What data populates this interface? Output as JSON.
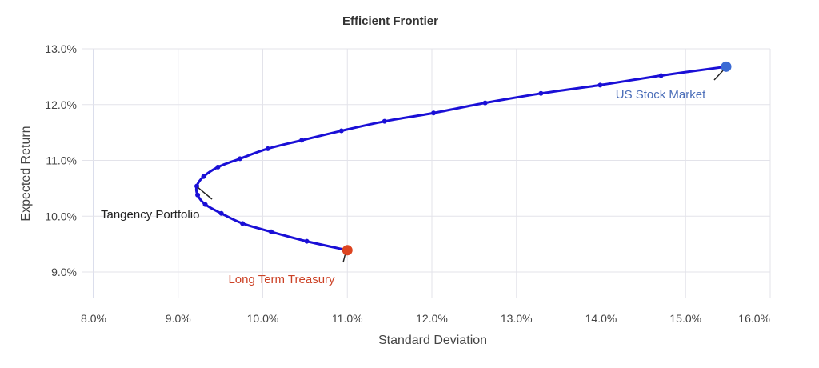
{
  "chart_data": {
    "type": "line",
    "title": "Efficient Frontier",
    "xlabel": "Standard Deviation",
    "ylabel": "Expected Return",
    "xlim": [
      8.0,
      16.0
    ],
    "ylim": [
      8.53,
      13.0
    ],
    "x_ticks": [
      "8.0%",
      "9.0%",
      "10.0%",
      "11.0%",
      "12.0%",
      "13.0%",
      "14.0%",
      "15.0%",
      "16.0%"
    ],
    "y_ticks": [
      "9.0%",
      "10.0%",
      "11.0%",
      "12.0%",
      "13.0%"
    ],
    "grid": true,
    "legend": null,
    "series": [
      {
        "name": "Efficient Frontier",
        "color": "#1a0fd6",
        "x": [
          11.0,
          10.52,
          10.1,
          9.76,
          9.51,
          9.32,
          9.23,
          9.22,
          9.3,
          9.47,
          9.73,
          10.06,
          10.46,
          10.93,
          11.44,
          12.02,
          12.63,
          13.29,
          13.99,
          14.71,
          15.48
        ],
        "y": [
          9.39,
          9.55,
          9.72,
          9.87,
          10.05,
          10.21,
          10.38,
          10.54,
          10.71,
          10.88,
          11.03,
          11.21,
          11.36,
          11.53,
          11.7,
          11.85,
          12.03,
          12.2,
          12.35,
          12.52,
          12.68
        ]
      }
    ],
    "annotations": [
      {
        "label": "Long Term Treasury",
        "x": 11.0,
        "y": 9.39,
        "color": "#cc4125",
        "marker_color": "#dd4420"
      },
      {
        "label": "Tangency Portfolio",
        "x": 9.22,
        "y": 10.54,
        "color": "#222222",
        "marker_color": null
      },
      {
        "label": "US Stock Market",
        "x": 15.48,
        "y": 12.68,
        "color": "#4a6db8",
        "marker_color": "#3a6ad4"
      }
    ]
  },
  "colors": {
    "line": "#1a0fd6",
    "grid": "#e3e3ea",
    "axis": "#cfd3e6",
    "text": "#444444"
  }
}
